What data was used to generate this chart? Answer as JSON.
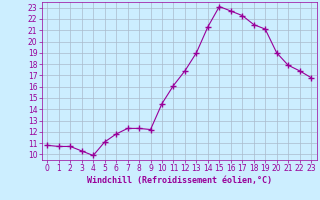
{
  "x": [
    0,
    1,
    2,
    3,
    4,
    5,
    6,
    7,
    8,
    9,
    10,
    11,
    12,
    13,
    14,
    15,
    16,
    17,
    18,
    19,
    20,
    21,
    22,
    23
  ],
  "y": [
    10.8,
    10.7,
    10.7,
    10.3,
    9.9,
    11.1,
    11.8,
    12.3,
    12.3,
    12.2,
    14.5,
    16.1,
    17.4,
    19.0,
    21.3,
    23.1,
    22.7,
    22.3,
    21.5,
    21.1,
    19.0,
    17.9,
    17.4,
    16.8
  ],
  "line_color": "#990099",
  "marker": "+",
  "marker_size": 4,
  "bg_color": "#cceeff",
  "grid_color": "#aabbcc",
  "xlabel": "Windchill (Refroidissement éolien,°C)",
  "xlim": [
    -0.5,
    23.5
  ],
  "ylim": [
    9.5,
    23.5
  ],
  "yticks": [
    10,
    11,
    12,
    13,
    14,
    15,
    16,
    17,
    18,
    19,
    20,
    21,
    22,
    23
  ],
  "xticks": [
    0,
    1,
    2,
    3,
    4,
    5,
    6,
    7,
    8,
    9,
    10,
    11,
    12,
    13,
    14,
    15,
    16,
    17,
    18,
    19,
    20,
    21,
    22,
    23
  ],
  "tick_color": "#990099",
  "label_color": "#990099",
  "label_fontsize": 6.0,
  "tick_fontsize": 5.5,
  "linewidth": 0.8,
  "marker_linewidth": 1.0
}
